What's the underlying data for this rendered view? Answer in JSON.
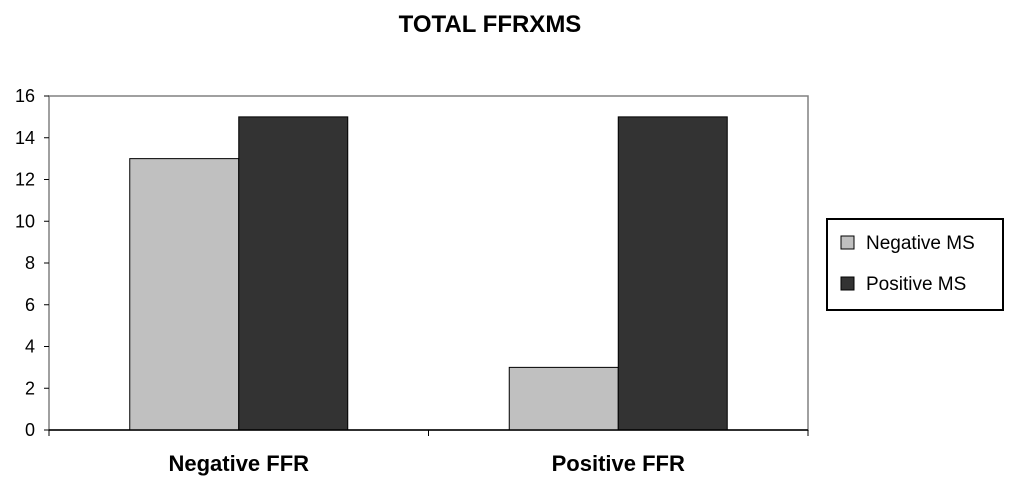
{
  "chart_data": {
    "type": "bar",
    "title": "TOTAL FFRXMS",
    "xlabel": "",
    "ylabel": "",
    "categories": [
      "Negative FFR",
      "Positive FFR"
    ],
    "series": [
      {
        "name": "Negative MS",
        "values": [
          13,
          3
        ],
        "color": "#c0c0c0"
      },
      {
        "name": "Positive MS",
        "values": [
          15,
          15
        ],
        "color": "#333333"
      }
    ],
    "ylim": [
      0,
      16
    ],
    "yticks": [
      "0",
      "2",
      "4",
      "6",
      "8",
      "10",
      "12",
      "14",
      "16"
    ],
    "grid": false,
    "legend": "right"
  }
}
